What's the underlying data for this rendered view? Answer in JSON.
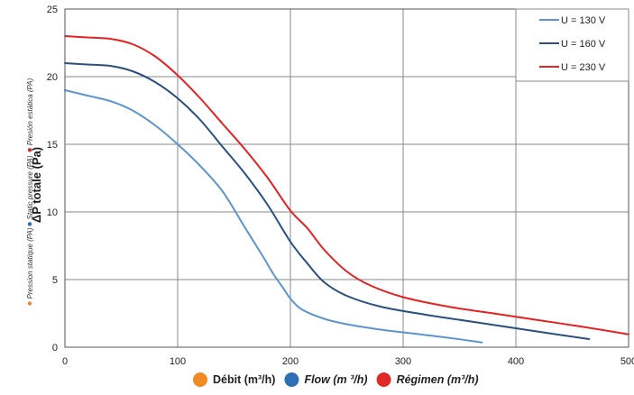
{
  "chart_data": {
    "type": "line",
    "ylabel": "ΔP totale (Pa)",
    "ylabel_secondary": [
      {
        "text": "Pression statique (PA)",
        "color": "#f08a24"
      },
      {
        "text": "Static pressure (PA)",
        "color": "#2f6fb5"
      },
      {
        "text": "Presión estática (PA)",
        "color": "#e02a2a"
      }
    ],
    "xlabel": [
      {
        "text": "Débit (m³/h)",
        "color": "#f08a24",
        "italic": false
      },
      {
        "text": "Flow (m ³/h)",
        "color": "#2f6fb5",
        "italic": true
      },
      {
        "text": "Régimen (m³/h)",
        "color": "#e02a2a",
        "italic": true
      }
    ],
    "xlim": [
      0,
      500
    ],
    "ylim": [
      0,
      25
    ],
    "xticks": [
      0,
      100,
      200,
      300,
      400,
      500
    ],
    "yticks": [
      0,
      5,
      10,
      15,
      20,
      25
    ],
    "xtick_labels": [
      "0",
      "100",
      "200",
      "300",
      "400",
      "500"
    ],
    "ytick_labels": [
      "0",
      "5",
      "10",
      "15",
      "20",
      "25"
    ],
    "grid": true,
    "legend_position": "top-right",
    "series": [
      {
        "name": "U = 130 V",
        "color": "#5b95d0",
        "x": [
          0,
          20,
          40,
          60,
          80,
          100,
          120,
          140,
          160,
          175,
          185,
          195,
          200,
          210,
          230,
          250,
          280,
          310,
          340,
          370
        ],
        "y": [
          19,
          18.6,
          18.2,
          17.5,
          16.4,
          15,
          13.4,
          11.5,
          8.8,
          6.8,
          5.4,
          4.2,
          3.6,
          2.8,
          2.1,
          1.7,
          1.3,
          1.0,
          0.7,
          0.35
        ]
      },
      {
        "name": "U = 160 V",
        "color": "#2a4f80",
        "x": [
          0,
          20,
          40,
          60,
          80,
          100,
          120,
          140,
          160,
          180,
          200,
          215,
          230,
          250,
          280,
          320,
          360,
          400,
          440,
          465
        ],
        "y": [
          21,
          20.9,
          20.8,
          20.4,
          19.6,
          18.4,
          16.8,
          14.8,
          12.8,
          10.5,
          7.8,
          6.2,
          4.8,
          3.8,
          3.0,
          2.4,
          1.9,
          1.4,
          0.9,
          0.6
        ]
      },
      {
        "name": "U = 230 V",
        "color": "#e32222",
        "x": [
          0,
          20,
          40,
          60,
          80,
          100,
          120,
          140,
          160,
          180,
          200,
          215,
          230,
          250,
          270,
          300,
          340,
          380,
          420,
          460,
          500
        ],
        "y": [
          23,
          22.9,
          22.8,
          22.4,
          21.5,
          20.1,
          18.4,
          16.5,
          14.6,
          12.5,
          10.1,
          8.8,
          7.2,
          5.6,
          4.6,
          3.7,
          3.0,
          2.5,
          2.0,
          1.5,
          0.95
        ]
      }
    ]
  },
  "ui": {
    "background": "#ffffff",
    "grid_color": "#8a8a8a"
  }
}
